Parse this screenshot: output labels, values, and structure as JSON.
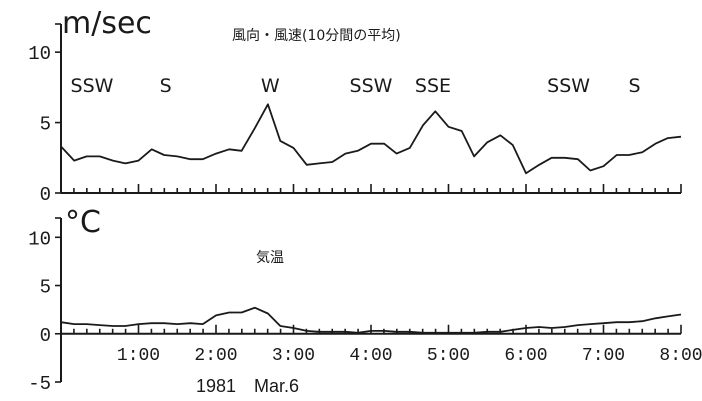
{
  "chart_data": [
    {
      "type": "line",
      "title": "風向・風速(10分間の平均)",
      "ylabel": "m/sec",
      "ylim": [
        0,
        12
      ],
      "yticks": [
        "0",
        "5",
        "10"
      ],
      "xlim": [
        0,
        8
      ],
      "series": [
        {
          "x": [
            0.0,
            0.17,
            0.33,
            0.5,
            0.67,
            0.83,
            1.0,
            1.17,
            1.33,
            1.5,
            1.67,
            1.83,
            2.0,
            2.17,
            2.33,
            2.5,
            2.67,
            2.83,
            3.0,
            3.17,
            3.33,
            3.5,
            3.67,
            3.83,
            4.0,
            4.17,
            4.33,
            4.5,
            4.67,
            4.83,
            5.0,
            5.17,
            5.33,
            5.5,
            5.67,
            5.83,
            6.0,
            6.17,
            6.33,
            6.5,
            6.67,
            6.83,
            7.0,
            7.17,
            7.33,
            7.5,
            7.67,
            7.83,
            8.0
          ],
          "y": [
            3.3,
            2.3,
            2.6,
            2.6,
            2.3,
            2.1,
            2.3,
            3.1,
            2.7,
            2.6,
            2.4,
            2.4,
            2.8,
            3.1,
            3.0,
            4.6,
            6.3,
            3.7,
            3.2,
            2.0,
            2.1,
            2.2,
            2.8,
            3.0,
            3.5,
            3.5,
            2.8,
            3.2,
            4.8,
            5.8,
            4.7,
            4.4,
            2.6,
            3.6,
            4.1,
            3.4,
            1.4,
            2.0,
            2.5,
            2.5,
            2.4,
            1.6,
            1.9,
            2.7,
            2.7,
            2.9,
            3.5,
            3.9,
            4.0
          ]
        }
      ],
      "annotations": [
        {
          "text": "SSW",
          "x": 0.4
        },
        {
          "text": "S",
          "x": 1.35
        },
        {
          "text": "W",
          "x": 2.7
        },
        {
          "text": "SSW",
          "x": 4.0
        },
        {
          "text": "SSE",
          "x": 4.8
        },
        {
          "text": "SSW",
          "x": 6.55
        },
        {
          "text": "S",
          "x": 7.4
        }
      ]
    },
    {
      "type": "line",
      "title": "気温",
      "ylabel": "°C",
      "ylim": [
        -5,
        12
      ],
      "yticks": [
        "-5",
        "0",
        "5",
        "10"
      ],
      "xlim": [
        0,
        8
      ],
      "xticks": [
        "1:00",
        "2:00",
        "3:00",
        "4:00",
        "5:00",
        "6:00",
        "7:00",
        "8:00"
      ],
      "xlabel": "1981　Mar.6",
      "series": [
        {
          "x": [
            0.0,
            0.17,
            0.33,
            0.5,
            0.67,
            0.83,
            1.0,
            1.17,
            1.33,
            1.5,
            1.67,
            1.83,
            2.0,
            2.17,
            2.33,
            2.5,
            2.67,
            2.83,
            3.0,
            3.17,
            3.33,
            3.5,
            3.67,
            3.83,
            4.0,
            4.17,
            4.33,
            4.5,
            4.67,
            4.83,
            5.0,
            5.17,
            5.33,
            5.5,
            5.67,
            5.83,
            6.0,
            6.17,
            6.33,
            6.5,
            6.67,
            6.83,
            7.0,
            7.17,
            7.33,
            7.5,
            7.67,
            7.83,
            8.0
          ],
          "y": [
            1.2,
            1.0,
            1.0,
            0.9,
            0.8,
            0.8,
            1.0,
            1.1,
            1.1,
            1.0,
            1.1,
            1.0,
            1.9,
            2.2,
            2.2,
            2.7,
            2.1,
            0.8,
            0.6,
            0.3,
            0.2,
            0.2,
            0.2,
            0.1,
            0.3,
            0.3,
            0.2,
            0.2,
            0.1,
            0.1,
            0.1,
            0.1,
            0.1,
            0.2,
            0.2,
            0.4,
            0.6,
            0.7,
            0.6,
            0.7,
            0.9,
            1.0,
            1.1,
            1.2,
            1.2,
            1.3,
            1.6,
            1.8,
            2.0
          ]
        }
      ]
    }
  ]
}
